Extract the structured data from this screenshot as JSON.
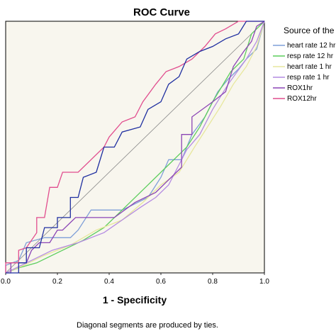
{
  "chart_data": {
    "type": "line",
    "title": "ROC Curve",
    "xlabel": "1 - Specificity",
    "ylabel": "",
    "xlim": [
      0,
      1
    ],
    "ylim": [
      0,
      1
    ],
    "xticks": [
      "0.0",
      "0.2",
      "0.4",
      "0.6",
      "0.8",
      "1.0"
    ],
    "legend_title": "Source of the",
    "legend_placement": "right",
    "footnote": "Diagonal segments are produced by ties.",
    "grid": false,
    "series": [
      {
        "name": "heart rate 12 hr",
        "color": "#7f9fd8",
        "points": [
          [
            0,
            0
          ],
          [
            0,
            0.03
          ],
          [
            0.05,
            0.05
          ],
          [
            0.08,
            0.12
          ],
          [
            0.15,
            0.14
          ],
          [
            0.25,
            0.14
          ],
          [
            0.28,
            0.17
          ],
          [
            0.33,
            0.25
          ],
          [
            0.45,
            0.25
          ],
          [
            0.55,
            0.3
          ],
          [
            0.6,
            0.38
          ],
          [
            0.63,
            0.45
          ],
          [
            0.68,
            0.45
          ],
          [
            0.72,
            0.55
          ],
          [
            0.77,
            0.62
          ],
          [
            0.82,
            0.72
          ],
          [
            0.86,
            0.77
          ],
          [
            0.9,
            0.81
          ],
          [
            0.93,
            0.85
          ],
          [
            0.97,
            0.89
          ],
          [
            1,
            1
          ]
        ]
      },
      {
        "name": "resp rate 12 hr",
        "color": "#5ccd5c",
        "points": [
          [
            0,
            0
          ],
          [
            0.05,
            0.02
          ],
          [
            0.12,
            0.04
          ],
          [
            0.2,
            0.08
          ],
          [
            0.3,
            0.13
          ],
          [
            0.38,
            0.18
          ],
          [
            0.45,
            0.25
          ],
          [
            0.55,
            0.35
          ],
          [
            0.62,
            0.42
          ],
          [
            0.7,
            0.5
          ],
          [
            0.75,
            0.58
          ],
          [
            0.8,
            0.68
          ],
          [
            0.87,
            0.8
          ],
          [
            0.92,
            0.85
          ],
          [
            0.95,
            0.95
          ],
          [
            1,
            1
          ]
        ]
      },
      {
        "name": "heart rate 1 hr",
        "color": "#e7e79d",
        "points": [
          [
            0,
            0
          ],
          [
            0.07,
            0.03
          ],
          [
            0.15,
            0.07
          ],
          [
            0.25,
            0.11
          ],
          [
            0.35,
            0.17
          ],
          [
            0.45,
            0.21
          ],
          [
            0.53,
            0.28
          ],
          [
            0.6,
            0.35
          ],
          [
            0.67,
            0.4
          ],
          [
            0.73,
            0.5
          ],
          [
            0.78,
            0.58
          ],
          [
            0.83,
            0.66
          ],
          [
            0.88,
            0.75
          ],
          [
            0.93,
            0.82
          ],
          [
            0.97,
            0.9
          ],
          [
            1,
            1
          ]
        ]
      },
      {
        "name": "resp rate 1 hr",
        "color": "#b48be2",
        "points": [
          [
            0,
            0
          ],
          [
            0.1,
            0.05
          ],
          [
            0.18,
            0.09
          ],
          [
            0.28,
            0.12
          ],
          [
            0.38,
            0.16
          ],
          [
            0.45,
            0.21
          ],
          [
            0.52,
            0.26
          ],
          [
            0.58,
            0.3
          ],
          [
            0.63,
            0.35
          ],
          [
            0.66,
            0.41
          ],
          [
            0.7,
            0.49
          ],
          [
            0.75,
            0.55
          ],
          [
            0.8,
            0.65
          ],
          [
            0.86,
            0.75
          ],
          [
            0.93,
            0.85
          ],
          [
            0.97,
            0.92
          ],
          [
            1,
            1
          ]
        ]
      },
      {
        "name": "ROX1hr",
        "color": "#8b45b5",
        "points": [
          [
            0,
            0
          ],
          [
            0.02,
            0
          ],
          [
            0.02,
            0.04
          ],
          [
            0.08,
            0.04
          ],
          [
            0.1,
            0.09
          ],
          [
            0.13,
            0.12
          ],
          [
            0.17,
            0.12
          ],
          [
            0.2,
            0.17
          ],
          [
            0.22,
            0.17
          ],
          [
            0.27,
            0.22
          ],
          [
            0.33,
            0.22
          ],
          [
            0.42,
            0.22
          ],
          [
            0.5,
            0.28
          ],
          [
            0.58,
            0.32
          ],
          [
            0.62,
            0.36
          ],
          [
            0.68,
            0.42
          ],
          [
            0.68,
            0.55
          ],
          [
            0.72,
            0.55
          ],
          [
            0.72,
            0.62
          ],
          [
            0.8,
            0.68
          ],
          [
            0.85,
            0.72
          ],
          [
            0.88,
            0.82
          ],
          [
            0.92,
            0.88
          ],
          [
            0.95,
            0.92
          ],
          [
            0.97,
            0.98
          ],
          [
            1,
            1
          ]
        ]
      },
      {
        "name": "ROX12hr",
        "color": "#e14d8e",
        "points": [
          [
            0,
            0
          ],
          [
            0.0,
            0.04
          ],
          [
            0.05,
            0.04
          ],
          [
            0.05,
            0.09
          ],
          [
            0.08,
            0.1
          ],
          [
            0.12,
            0.16
          ],
          [
            0.12,
            0.22
          ],
          [
            0.15,
            0.22
          ],
          [
            0.17,
            0.34
          ],
          [
            0.2,
            0.34
          ],
          [
            0.22,
            0.4
          ],
          [
            0.28,
            0.4
          ],
          [
            0.33,
            0.45
          ],
          [
            0.38,
            0.5
          ],
          [
            0.4,
            0.54
          ],
          [
            0.45,
            0.6
          ],
          [
            0.5,
            0.62
          ],
          [
            0.53,
            0.68
          ],
          [
            0.58,
            0.75
          ],
          [
            0.62,
            0.8
          ],
          [
            0.67,
            0.82
          ],
          [
            0.72,
            0.85
          ],
          [
            0.77,
            0.9
          ],
          [
            0.81,
            0.95
          ],
          [
            0.85,
            0.97
          ],
          [
            0.9,
            1
          ],
          [
            1,
            1
          ]
        ]
      },
      {
        "name": "",
        "color": "#1f2fa0",
        "points": [
          [
            0,
            0
          ],
          [
            0.05,
            0
          ],
          [
            0.05,
            0.04
          ],
          [
            0.08,
            0.04
          ],
          [
            0.08,
            0.1
          ],
          [
            0.13,
            0.1
          ],
          [
            0.15,
            0.18
          ],
          [
            0.2,
            0.18
          ],
          [
            0.2,
            0.22
          ],
          [
            0.25,
            0.22
          ],
          [
            0.25,
            0.3
          ],
          [
            0.28,
            0.3
          ],
          [
            0.3,
            0.38
          ],
          [
            0.35,
            0.4
          ],
          [
            0.38,
            0.5
          ],
          [
            0.42,
            0.5
          ],
          [
            0.45,
            0.56
          ],
          [
            0.52,
            0.58
          ],
          [
            0.55,
            0.65
          ],
          [
            0.6,
            0.68
          ],
          [
            0.63,
            0.75
          ],
          [
            0.67,
            0.78
          ],
          [
            0.7,
            0.85
          ],
          [
            0.75,
            0.88
          ],
          [
            0.8,
            0.9
          ],
          [
            0.85,
            0.93
          ],
          [
            0.9,
            0.95
          ],
          [
            0.93,
            1
          ],
          [
            1,
            1
          ]
        ]
      }
    ]
  }
}
